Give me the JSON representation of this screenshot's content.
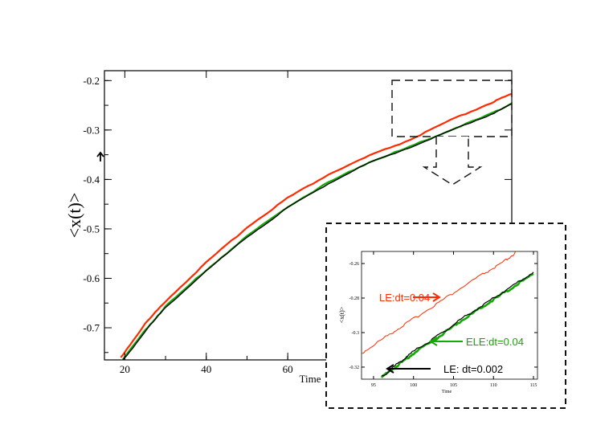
{
  "chart_data": [
    {
      "type": "line",
      "xlabel": "Time",
      "ylabel": "<x(t)>",
      "xlim": [
        15,
        115
      ],
      "ylim": [
        -0.765,
        -0.18
      ],
      "xticks": [
        20,
        40,
        60
      ],
      "yticks": [
        -0.2,
        -0.3,
        -0.4,
        -0.5,
        -0.6,
        -0.7
      ],
      "ytick_labels": [
        "-0.2",
        "-0.3",
        "-0.4",
        "-0.5",
        "-0.6",
        "-0.7"
      ],
      "xtick_labels": [
        "20",
        "40",
        "60"
      ],
      "grid": false,
      "series": [
        {
          "color": "#ff2a00",
          "x": [
            19,
            25,
            30,
            40,
            50,
            60,
            70,
            80,
            90,
            100,
            110,
            115
          ],
          "y": [
            -0.76,
            -0.692,
            -0.646,
            -0.568,
            -0.497,
            -0.437,
            -0.39,
            -0.352,
            -0.32,
            -0.28,
            -0.245,
            -0.227
          ]
        },
        {
          "color": "#11aa00",
          "x": [
            19,
            25,
            30,
            40,
            50,
            60,
            70,
            80,
            90,
            100,
            110,
            115
          ],
          "y": [
            -0.77,
            -0.705,
            -0.657,
            -0.583,
            -0.515,
            -0.455,
            -0.406,
            -0.365,
            -0.334,
            -0.3,
            -0.267,
            -0.246
          ]
        },
        {
          "color": "#000000",
          "x": [
            19,
            25,
            30,
            40,
            50,
            60,
            70,
            80,
            90,
            100,
            110,
            115
          ],
          "y": [
            -0.772,
            -0.707,
            -0.659,
            -0.585,
            -0.517,
            -0.457,
            -0.408,
            -0.366,
            -0.335,
            -0.301,
            -0.268,
            -0.247
          ]
        }
      ]
    },
    {
      "type": "line",
      "xlabel": "Time",
      "ylabel": "<x(t)>",
      "xlim": [
        93.5,
        115.5
      ],
      "ylim": [
        -0.327,
        -0.253
      ],
      "xticks": [
        95,
        100,
        105,
        110,
        115
      ],
      "xtick_labels": [
        "95",
        "100",
        "105",
        "110",
        "115"
      ],
      "yticks": [
        -0.26,
        -0.28,
        -0.3,
        -0.32
      ],
      "ytick_labels": [
        "-0.26",
        "-0.28",
        "-0.3",
        "-0.32"
      ],
      "grid": false,
      "series": [
        {
          "name": "LE:dt=0.04",
          "color": "#ff2a00",
          "x": [
            93.5,
            97,
            100,
            104,
            108,
            111,
            113
          ],
          "y": [
            -0.312,
            -0.301,
            -0.292,
            -0.28,
            -0.268,
            -0.26,
            -0.253
          ]
        },
        {
          "name": "ELE:dt=0.04",
          "color": "#11aa00",
          "x": [
            96,
            98,
            100,
            103,
            106,
            109,
            112,
            115
          ],
          "y": [
            -0.326,
            -0.319,
            -0.312,
            -0.303,
            -0.293,
            -0.284,
            -0.275,
            -0.266
          ]
        },
        {
          "name": "LE: dt=0.002",
          "color": "#000000",
          "x": [
            96,
            98,
            100,
            103,
            106,
            109,
            112,
            115
          ],
          "y": [
            -0.326,
            -0.318,
            -0.311,
            -0.302,
            -0.292,
            -0.283,
            -0.274,
            -0.265
          ]
        }
      ]
    }
  ],
  "annotations": {
    "red_label": "LE:dt=0.04",
    "green_label": "ELE:dt=0.04",
    "black_label": "LE: dt=0.002"
  },
  "colors": {
    "red": "#ff2a00",
    "green": "#11aa00",
    "black": "#000000"
  }
}
